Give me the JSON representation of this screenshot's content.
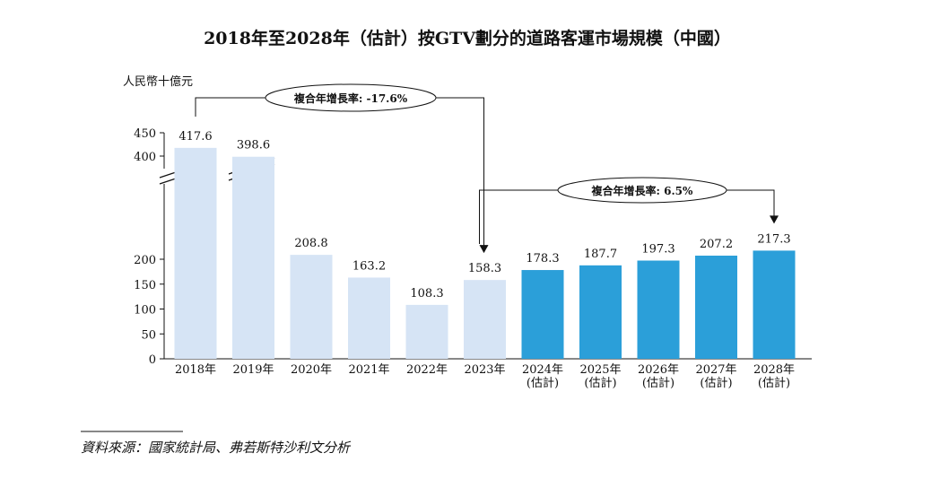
{
  "chart_data": {
    "type": "bar",
    "title": "2018年至2028年（估計）按GTV劃分的道路客運市場規模（中國）",
    "ylabel": "人民幣十億元",
    "categories": [
      [
        "2018年"
      ],
      [
        "2019年"
      ],
      [
        "2020年"
      ],
      [
        "2021年"
      ],
      [
        "2022年"
      ],
      [
        "2023年"
      ],
      [
        "2024年",
        "(估計)"
      ],
      [
        "2025年",
        "(估計)"
      ],
      [
        "2026年",
        "(估計)"
      ],
      [
        "2027年",
        "(估計)"
      ],
      [
        "2028年",
        "(估計)"
      ]
    ],
    "values": [
      417.6,
      398.6,
      208.8,
      163.2,
      108.3,
      158.3,
      178.3,
      187.7,
      197.3,
      207.2,
      217.3
    ],
    "value_labels": [
      "417.6",
      "398.6",
      "208.8",
      "163.2",
      "108.3",
      "158.3",
      "178.3",
      "187.7",
      "197.3",
      "207.2",
      "217.3"
    ],
    "yticks_lower": [
      0,
      50,
      100,
      150,
      200
    ],
    "yticks_upper": [
      400,
      450
    ],
    "axis_break": true,
    "colors": {
      "historical": "#d6e4f5",
      "forecast": "#2b9fd9"
    },
    "annotations": [
      {
        "text": "複合年增長率: -17.6%",
        "from_category": 0,
        "to_category": 5
      },
      {
        "text": "複合年增長率: 6.5%",
        "from_category": 5,
        "to_category": 10
      }
    ],
    "source": "資料來源：國家統計局、弗若斯特沙利文分析"
  }
}
